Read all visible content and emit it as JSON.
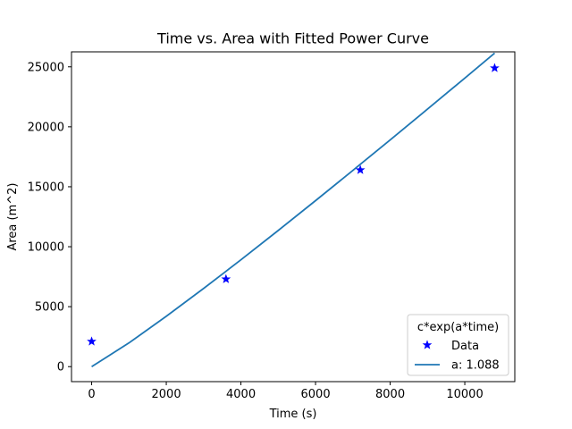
{
  "chart_data": {
    "type": "line",
    "title": "Time vs. Area with Fitted Power Curve",
    "xlabel": "Time (s)",
    "ylabel": "Area (m^2)",
    "xlim": [
      -540,
      11340
    ],
    "ylim": [
      -1250,
      26250
    ],
    "x_ticks": [
      0,
      2000,
      4000,
      6000,
      8000,
      10000
    ],
    "y_ticks": [
      0,
      5000,
      10000,
      15000,
      20000,
      25000
    ],
    "grid": false,
    "legend": {
      "title": "c*exp(a*time)",
      "placement": "lower-right"
    },
    "series": [
      {
        "name": "Data",
        "kind": "scatter",
        "marker": "star",
        "color": "#0000ff",
        "points": [
          {
            "x": 0,
            "y": 2100
          },
          {
            "x": 3600,
            "y": 7300
          },
          {
            "x": 7200,
            "y": 16400
          },
          {
            "x": 10800,
            "y": 24900
          }
        ]
      },
      {
        "name": "a: 1.088",
        "kind": "line",
        "color": "#1f77b4",
        "model": "power",
        "exponent": 1.088,
        "points": [
          {
            "x": 0,
            "y": 0
          },
          {
            "x": 1000,
            "y": 1978
          },
          {
            "x": 2000,
            "y": 4199
          },
          {
            "x": 3000,
            "y": 6518
          },
          {
            "x": 3600,
            "y": 7950
          },
          {
            "x": 4000,
            "y": 8910
          },
          {
            "x": 5000,
            "y": 11355
          },
          {
            "x": 6000,
            "y": 13841
          },
          {
            "x": 7000,
            "y": 16360
          },
          {
            "x": 7200,
            "y": 16875
          },
          {
            "x": 8000,
            "y": 18904
          },
          {
            "x": 9000,
            "y": 21472
          },
          {
            "x": 10000,
            "y": 24058
          },
          {
            "x": 10800,
            "y": 26147
          }
        ]
      }
    ]
  }
}
